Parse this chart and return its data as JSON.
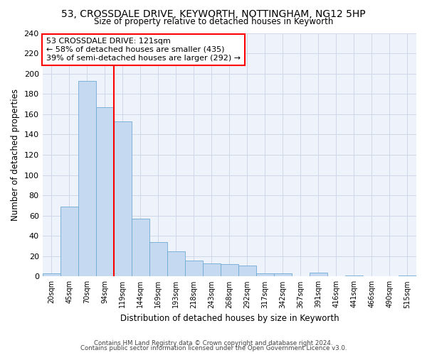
{
  "title1": "53, CROSSDALE DRIVE, KEYWORTH, NOTTINGHAM, NG12 5HP",
  "title2": "Size of property relative to detached houses in Keyworth",
  "xlabel": "Distribution of detached houses by size in Keyworth",
  "ylabel": "Number of detached properties",
  "footer1": "Contains HM Land Registry data © Crown copyright and database right 2024.",
  "footer2": "Contains public sector information licensed under the Open Government Licence v3.0.",
  "bin_labels": [
    "20sqm",
    "45sqm",
    "70sqm",
    "94sqm",
    "119sqm",
    "144sqm",
    "169sqm",
    "193sqm",
    "218sqm",
    "243sqm",
    "268sqm",
    "292sqm",
    "317sqm",
    "342sqm",
    "367sqm",
    "391sqm",
    "416sqm",
    "441sqm",
    "466sqm",
    "490sqm",
    "515sqm"
  ],
  "bar_values": [
    3,
    69,
    193,
    167,
    153,
    57,
    34,
    25,
    16,
    13,
    12,
    11,
    3,
    3,
    0,
    4,
    0,
    1,
    0,
    0,
    1
  ],
  "bar_color": "#c5d9f0",
  "bar_edge_color": "#6eaad4",
  "annotation_text": "53 CROSSDALE DRIVE: 121sqm\n← 58% of detached houses are smaller (435)\n39% of semi-detached houses are larger (292) →",
  "annotation_box_color": "white",
  "annotation_box_edge": "red",
  "line_color": "red",
  "ylim": [
    0,
    240
  ],
  "yticks": [
    0,
    20,
    40,
    60,
    80,
    100,
    120,
    140,
    160,
    180,
    200,
    220,
    240
  ],
  "grid_color": "#d0d8e8",
  "background_color": "#eef2fb"
}
